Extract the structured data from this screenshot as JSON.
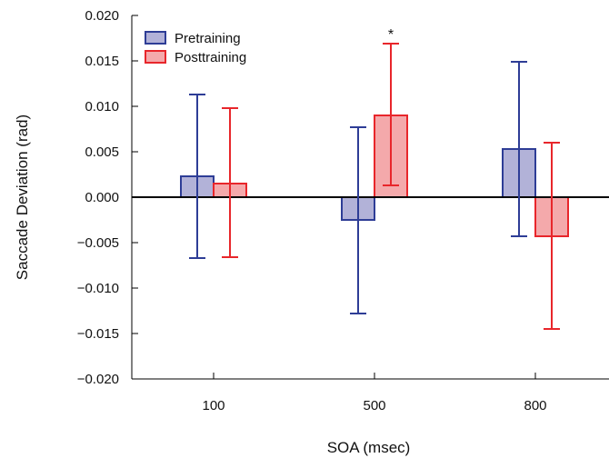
{
  "chart_data": {
    "type": "bar",
    "xlabel": "SOA (msec)",
    "ylabel": "Saccade Deviation (rad)",
    "ylim": [
      -0.02,
      0.02
    ],
    "yticks": [
      "0.020",
      "0.015",
      "0.010",
      "0.005",
      "0.000",
      "−0.005",
      "−0.010",
      "−0.015",
      "−0.020"
    ],
    "categories": [
      "100",
      "500",
      "800"
    ],
    "series": [
      {
        "name": "Pretraining",
        "color": "#b2b2d8",
        "edge_color": "#2e3d96",
        "values": [
          0.0023,
          -0.0025,
          0.0053
        ],
        "error_low": [
          -0.0067,
          -0.0128,
          -0.0043
        ],
        "error_high": [
          0.0113,
          0.0077,
          0.0149
        ]
      },
      {
        "name": "Posttraining",
        "color": "#f4a9ab",
        "edge_color": "#e8262b",
        "values": [
          0.0015,
          0.009,
          -0.0043
        ],
        "error_low": [
          -0.0066,
          0.0013,
          -0.0145
        ],
        "error_high": [
          0.0098,
          0.0169,
          0.006
        ]
      }
    ],
    "annotations": [
      {
        "text": "*",
        "category": "500",
        "series": "Posttraining"
      }
    ],
    "legend_position": "top-left",
    "grid": false
  }
}
